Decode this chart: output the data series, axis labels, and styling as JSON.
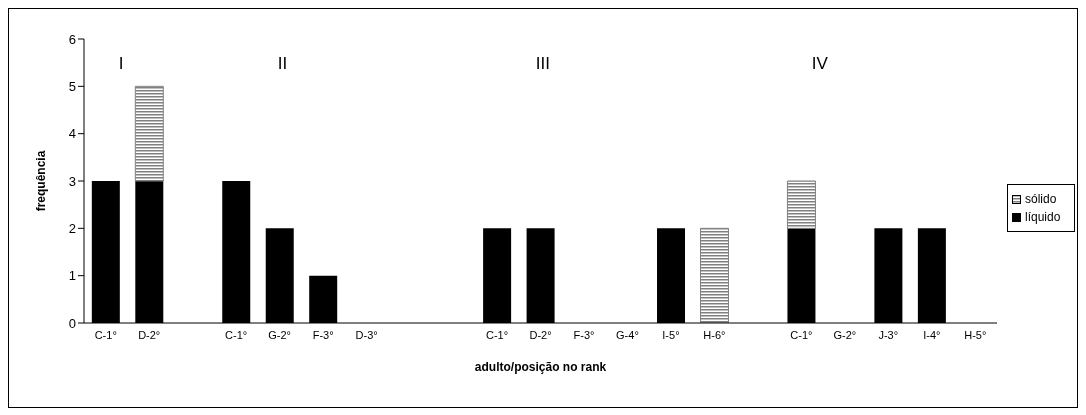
{
  "chart_data": {
    "type": "bar",
    "stacked": true,
    "xlabel": "adulto/posição no rank",
    "ylabel": "frequência",
    "categories": [
      "C-1°",
      "D-2°",
      null,
      "C-1°",
      "G-2°",
      "F-3°",
      "D-3°",
      null,
      null,
      "C-1°",
      "D-2°",
      "F-3°",
      "G-4°",
      "I-5°",
      "H-6°",
      null,
      "C-1°",
      "G-2°",
      "J-3°",
      "I-4°",
      "H-5°"
    ],
    "series": [
      {
        "name": "líquido",
        "color": "#000000",
        "values": [
          3,
          3,
          null,
          3,
          2,
          1,
          0,
          null,
          null,
          2,
          2,
          0,
          0,
          2,
          0,
          null,
          2,
          0,
          2,
          2,
          0
        ]
      },
      {
        "name": "sólido",
        "color": "#808080",
        "values": [
          0,
          2,
          null,
          0,
          0,
          0,
          0,
          null,
          null,
          0,
          0,
          0,
          0,
          0,
          2,
          null,
          1,
          0,
          0,
          0,
          0
        ]
      }
    ],
    "ylim": [
      0,
      6
    ],
    "yticks": [
      0,
      1,
      2,
      3,
      4,
      5,
      6
    ],
    "legend": "right",
    "annotations": [
      "I",
      "II",
      "III",
      "IV"
    ]
  }
}
